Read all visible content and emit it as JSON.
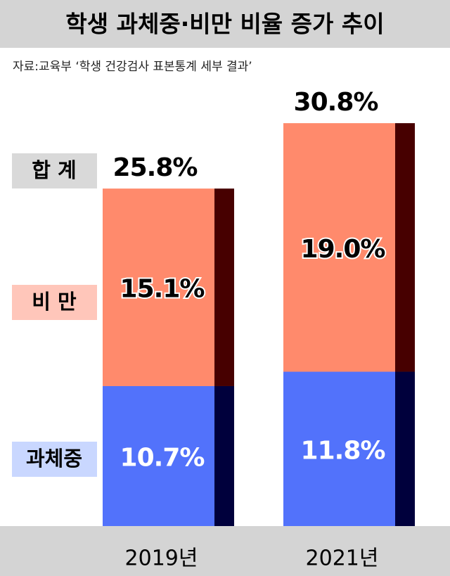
{
  "chart_data": {
    "type": "stacked-bar",
    "title": "학생 과체중·비만 비율 증가 추이",
    "subtitle": "자료:교육부 ‘학생 건강검사 표본통계 세부 결과’",
    "categories": [
      "2019년",
      "2021년"
    ],
    "series": [
      {
        "name": "과체중",
        "color": "#5272fb",
        "side_color": "#00003c",
        "legend_color": "#c9d7ff",
        "values": [
          10.7,
          11.8
        ],
        "value_labels": [
          "10.7%",
          "11.8%"
        ]
      },
      {
        "name": "비 만",
        "color": "#ff8a6c",
        "side_color": "#470000",
        "legend_color": "#ffc6ba",
        "values": [
          15.1,
          19.0
        ],
        "value_labels": [
          "15.1%",
          "19.0%"
        ]
      }
    ],
    "total_name": "합 계",
    "total_color": "#d9d9d9",
    "totals": [
      25.8,
      30.8
    ],
    "total_value_labels": [
      "25.8%",
      "30.8%"
    ]
  }
}
